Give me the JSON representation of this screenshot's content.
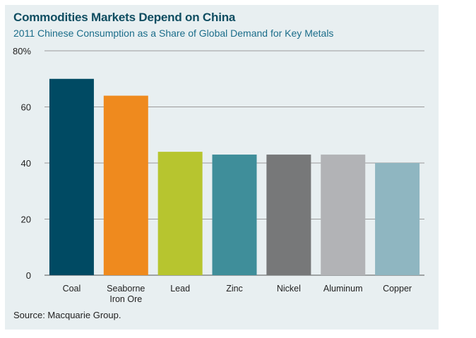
{
  "title": "Commodities Markets Depend on China",
  "subtitle": "2011 Chinese Consumption as a Share of Global Demand for Key Metals",
  "source": "Source: Macquarie Group.",
  "colors": {
    "panel_bg": "#e8eff1",
    "title": "#0f4d61",
    "subtitle": "#1b6d8a"
  },
  "chart_data": {
    "type": "bar",
    "categories": [
      "Coal",
      "Seaborne\nIron Ore",
      "Lead",
      "Zinc",
      "Nickel",
      "Aluminum",
      "Copper"
    ],
    "values": [
      70,
      64,
      44,
      43,
      43,
      43,
      40
    ],
    "bar_colors": [
      "#004a63",
      "#ef8a1e",
      "#b7c52f",
      "#3f8e9a",
      "#777879",
      "#b2b3b6",
      "#8fb6c1"
    ],
    "yticks": [
      "80%",
      "60",
      "40",
      "20",
      "0"
    ],
    "ytick_values": [
      80,
      60,
      40,
      20,
      0
    ],
    "ylim": [
      0,
      80
    ],
    "grid": true,
    "legend": "none"
  }
}
